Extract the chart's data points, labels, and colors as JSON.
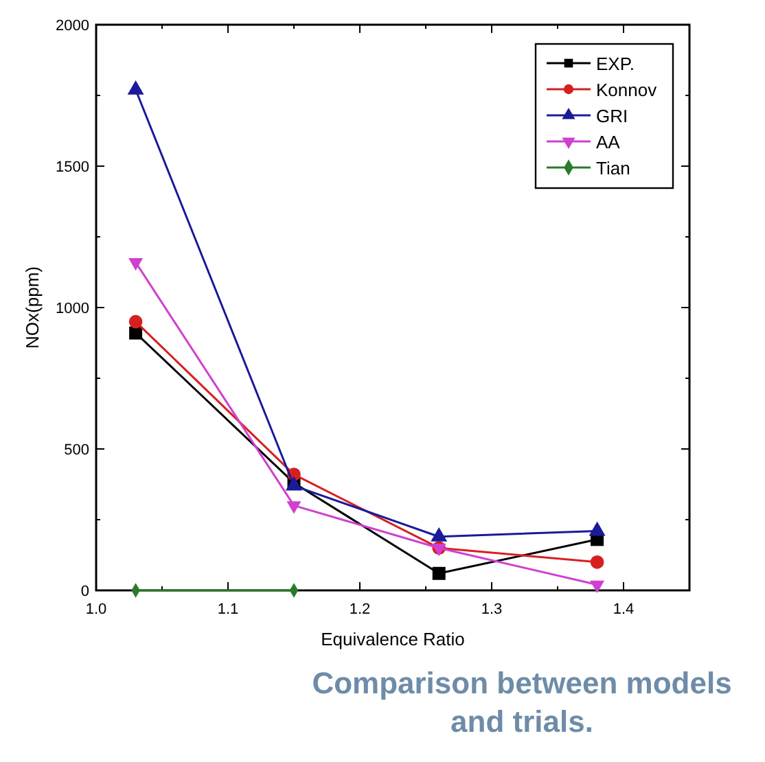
{
  "chart_data": {
    "type": "line",
    "title": "Comparison between models and trials.",
    "xlabel": "Equivalence Ratio",
    "ylabel": "NOx(ppm)",
    "x": [
      1.03,
      1.15,
      1.26,
      1.38
    ],
    "xlim": [
      1.0,
      1.45
    ],
    "xticks": [
      {
        "value": 1,
        "label": "1.0"
      },
      1.1,
      1.2,
      1.3,
      1.4
    ],
    "ylim": [
      0,
      2000
    ],
    "yticks": [
      0,
      500,
      1000,
      1500,
      2000
    ],
    "grid": false,
    "legend": "top right",
    "series": [
      {
        "name": "EXP.",
        "color": "#000000",
        "marker": "square",
        "values": [
          910,
          380,
          60,
          180
        ]
      },
      {
        "name": "Konnov",
        "color": "#d62020",
        "marker": "circle",
        "values": [
          950,
          410,
          150,
          100
        ]
      },
      {
        "name": "GRI",
        "color": "#1a1a9a",
        "marker": "triangle",
        "values": [
          1770,
          370,
          190,
          210
        ]
      },
      {
        "name": "AA",
        "color": "#d040d0",
        "marker": "triangle-down",
        "values": [
          1160,
          300,
          150,
          20
        ]
      },
      {
        "name": "Tian",
        "color": "#2a7a2a",
        "marker": "diamond",
        "values": [
          0,
          0,
          null,
          null
        ]
      }
    ]
  }
}
